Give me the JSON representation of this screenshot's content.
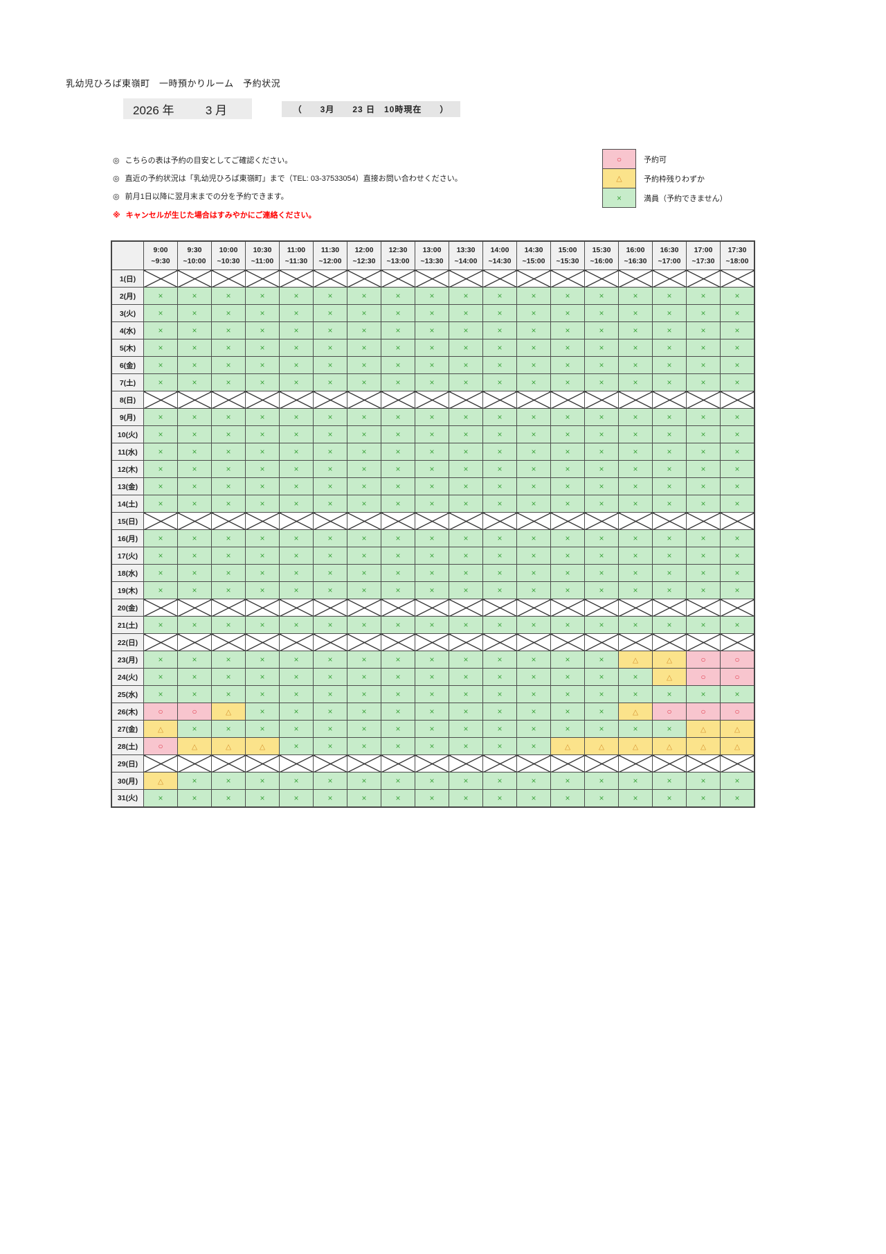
{
  "page": {
    "title": "乳幼児ひろば東嶺町　一時預かりルーム　予約状況"
  },
  "period": {
    "year_label": "2026 年",
    "month_label": "3 月",
    "asof": "（　　3月　　23 日　10時現在　　）"
  },
  "notes": [
    {
      "mark": "◎",
      "text": "こちらの表は予約の目安としてご確認ください。"
    },
    {
      "mark": "◎",
      "text": "直近の予約状況は「乳幼児ひろば東嶺町」まで（TEL: 03-37533054）直接お問い合わせください。"
    },
    {
      "mark": "◎",
      "text": "前月1日以降に翌月末までの分を予約できます。"
    }
  ],
  "warning": {
    "mark": "※",
    "text": "キャンセルが生じた場合はすみやかにご連絡ください。"
  },
  "legend": [
    {
      "symbol": "○",
      "label": "予約可",
      "status": "open"
    },
    {
      "symbol": "△",
      "label": "予約枠残りわずか",
      "status": "few"
    },
    {
      "symbol": "×",
      "label": "満員（予約できません）",
      "status": "full"
    }
  ],
  "colors": {
    "green": "#c7ecca",
    "green_symbol": "#3fa43f",
    "yellow": "#fbe38b",
    "orange_symbol": "#d4902e",
    "pink": "#f8c5ce",
    "red_symbol": "#e0394a",
    "header_gray": "#f0f0f0",
    "warning_red": "#ff0000"
  },
  "status_codes": {
    "x": "満員（予約できません）",
    "t": "予約枠残りわずか",
    "o": "予約可",
    "c": "休み（予約対象外）"
  },
  "schedule": {
    "time_slots": [
      {
        "start": "9:00",
        "end": "~9:30"
      },
      {
        "start": "9:30",
        "end": "~10:00"
      },
      {
        "start": "10:00",
        "end": "~10:30"
      },
      {
        "start": "10:30",
        "end": "~11:00"
      },
      {
        "start": "11:00",
        "end": "~11:30"
      },
      {
        "start": "11:30",
        "end": "~12:00"
      },
      {
        "start": "12:00",
        "end": "~12:30"
      },
      {
        "start": "12:30",
        "end": "~13:00"
      },
      {
        "start": "13:00",
        "end": "~13:30"
      },
      {
        "start": "13:30",
        "end": "~14:00"
      },
      {
        "start": "14:00",
        "end": "~14:30"
      },
      {
        "start": "14:30",
        "end": "~15:00"
      },
      {
        "start": "15:00",
        "end": "~15:30"
      },
      {
        "start": "15:30",
        "end": "~16:00"
      },
      {
        "start": "16:00",
        "end": "~16:30"
      },
      {
        "start": "16:30",
        "end": "~17:00"
      },
      {
        "start": "17:00",
        "end": "~17:30"
      },
      {
        "start": "17:30",
        "end": "~18:00"
      }
    ],
    "rows": [
      {
        "day": "1(日)",
        "cells": "cccccccccccccccccc"
      },
      {
        "day": "2(月)",
        "cells": "xxxxxxxxxxxxxxxxxx"
      },
      {
        "day": "3(火)",
        "cells": "xxxxxxxxxxxxxxxxxx"
      },
      {
        "day": "4(水)",
        "cells": "xxxxxxxxxxxxxxxxxx"
      },
      {
        "day": "5(木)",
        "cells": "xxxxxxxxxxxxxxxxxx"
      },
      {
        "day": "6(金)",
        "cells": "xxxxxxxxxxxxxxxxxx"
      },
      {
        "day": "7(土)",
        "cells": "xxxxxxxxxxxxxxxxxx"
      },
      {
        "day": "8(日)",
        "cells": "cccccccccccccccccc"
      },
      {
        "day": "9(月)",
        "cells": "xxxxxxxxxxxxxxxxxx"
      },
      {
        "day": "10(火)",
        "cells": "xxxxxxxxxxxxxxxxxx"
      },
      {
        "day": "11(水)",
        "cells": "xxxxxxxxxxxxxxxxxx"
      },
      {
        "day": "12(木)",
        "cells": "xxxxxxxxxxxxxxxxxx"
      },
      {
        "day": "13(金)",
        "cells": "xxxxxxxxxxxxxxxxxx"
      },
      {
        "day": "14(土)",
        "cells": "xxxxxxxxxxxxxxxxxx"
      },
      {
        "day": "15(日)",
        "cells": "cccccccccccccccccc"
      },
      {
        "day": "16(月)",
        "cells": "xxxxxxxxxxxxxxxxxx"
      },
      {
        "day": "17(火)",
        "cells": "xxxxxxxxxxxxxxxxxx"
      },
      {
        "day": "18(水)",
        "cells": "xxxxxxxxxxxxxxxxxx"
      },
      {
        "day": "19(木)",
        "cells": "xxxxxxxxxxxxxxxxxx"
      },
      {
        "day": "20(金)",
        "cells": "cccccccccccccccccc"
      },
      {
        "day": "21(土)",
        "cells": "xxxxxxxxxxxxxxxxxx"
      },
      {
        "day": "22(日)",
        "cells": "cccccccccccccccccc"
      },
      {
        "day": "23(月)",
        "cells": "xxxxxxxxxxxxxxttoo"
      },
      {
        "day": "24(火)",
        "cells": "xxxxxxxxxxxxxxxtoo"
      },
      {
        "day": "25(水)",
        "cells": "xxxxxxxxxxxxxxxxxx"
      },
      {
        "day": "26(木)",
        "cells": "ootxxxxxxxxxxxtooo"
      },
      {
        "day": "27(金)",
        "cells": "txxxxxxxxxxxxxxxtt"
      },
      {
        "day": "28(土)",
        "cells": "otttxxxxxxxxtttttt"
      },
      {
        "day": "29(日)",
        "cells": "cccccccccccccccccc"
      },
      {
        "day": "30(月)",
        "cells": "txxxxxxxxxxxxxxxxx"
      },
      {
        "day": "31(火)",
        "cells": "xxxxxxxxxxxxxxxxxx"
      }
    ]
  }
}
